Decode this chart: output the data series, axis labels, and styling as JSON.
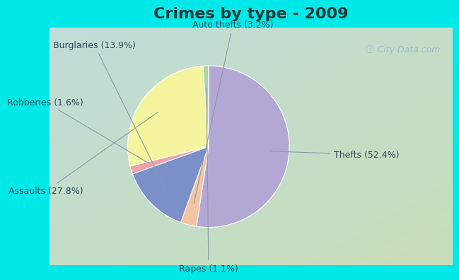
{
  "title": "Crimes by type - 2009",
  "title_fontsize": 16,
  "title_fontweight": "bold",
  "title_color": "#1a3a3a",
  "slices": [
    {
      "label": "Thefts (52.4%)",
      "value": 52.4,
      "color": "#b3a8d4"
    },
    {
      "label": "Auto thefts (3.2%)",
      "value": 3.2,
      "color": "#f5c5a3"
    },
    {
      "label": "Burglaries (13.9%)",
      "value": 13.9,
      "color": "#7b8fc9"
    },
    {
      "label": "Robberies (1.6%)",
      "value": 1.6,
      "color": "#f0a0a8"
    },
    {
      "label": "Assaults (27.8%)",
      "value": 27.8,
      "color": "#f5f5a0"
    },
    {
      "label": "Rapes (1.1%)",
      "value": 1.1,
      "color": "#a8d8a8"
    }
  ],
  "cyan_color": "#00e8e8",
  "bg_color_tl": "#c0ddd8",
  "bg_color_br": "#c8ddb8",
  "label_fontsize": 9,
  "label_color": "#2c4a5a",
  "startangle": 90,
  "counterclock": false
}
